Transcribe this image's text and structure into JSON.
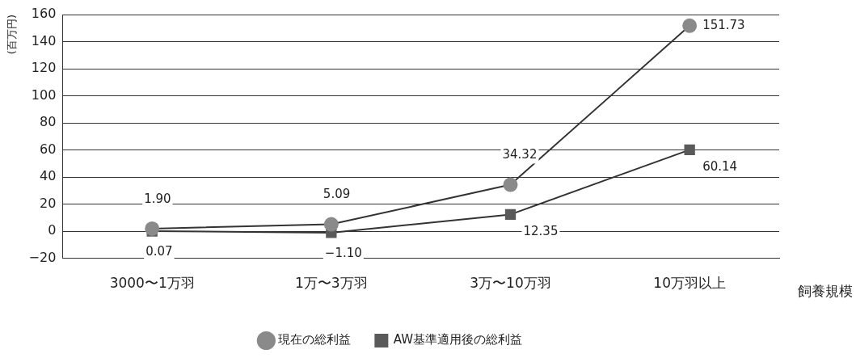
{
  "chart_data": {
    "type": "line",
    "xlabel": "飼養規模",
    "ylabel": "(百万円)",
    "categories": [
      "3000〜1万羽",
      "1万〜3万羽",
      "3万〜10万羽",
      "10万羽以上"
    ],
    "series": [
      {
        "name": "現在の総利益",
        "color": "#8a8a8a",
        "values": [
          1.9,
          5.09,
          34.32,
          151.73
        ],
        "value_labels": [
          "1.90",
          "5.09",
          "34.32",
          "151.73"
        ],
        "marker": "circle"
      },
      {
        "name": "AW基準適用後の総利益",
        "color": "#5a5a5a",
        "values": [
          0.07,
          -1.1,
          12.35,
          60.14
        ],
        "value_labels": [
          "0.07",
          "−1.10",
          "12.35",
          "60.14"
        ],
        "marker": "square"
      }
    ],
    "ylim": [
      -20,
      160
    ],
    "yticks": [
      -20,
      0,
      20,
      40,
      60,
      80,
      100,
      120,
      140,
      160
    ],
    "grid": "y",
    "legend": "bottom"
  }
}
